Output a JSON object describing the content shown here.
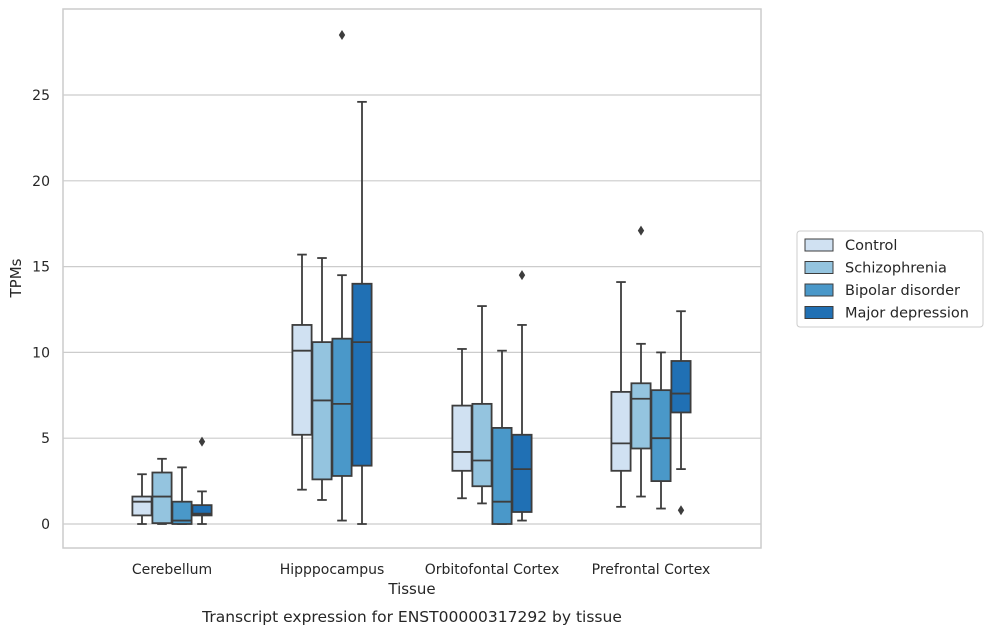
{
  "chart_data": {
    "type": "box",
    "caption": "Transcript expression for ENST00000317292 by tissue",
    "xlabel": "Tissue",
    "ylabel": "TPMs",
    "ylim": [
      -1.3,
      30
    ],
    "yticks": [
      0,
      5,
      10,
      15,
      20,
      25
    ],
    "grid": true,
    "legend_position": "right",
    "categories": [
      "Cerebellum",
      "Hipppocampus",
      "Orbitofontal Cortex",
      "Prefrontal Cortex"
    ],
    "series": [
      {
        "name": "Control",
        "color": "#d0e1f2",
        "boxes": [
          {
            "whislo": 0.0,
            "q1": 0.5,
            "med": 1.3,
            "q3": 1.6,
            "whishi": 2.9,
            "fliers": []
          },
          {
            "whislo": 2.0,
            "q1": 5.2,
            "med": 10.1,
            "q3": 11.6,
            "whishi": 15.7,
            "fliers": []
          },
          {
            "whislo": 1.5,
            "q1": 3.1,
            "med": 4.2,
            "q3": 6.9,
            "whishi": 10.2,
            "fliers": []
          },
          {
            "whislo": 1.0,
            "q1": 3.1,
            "med": 4.7,
            "q3": 7.7,
            "whishi": 14.1,
            "fliers": []
          }
        ]
      },
      {
        "name": "Schizophrenia",
        "color": "#94c4df",
        "boxes": [
          {
            "whislo": 0.0,
            "q1": 0.05,
            "med": 1.6,
            "q3": 3.0,
            "whishi": 3.8,
            "fliers": []
          },
          {
            "whislo": 1.4,
            "q1": 2.6,
            "med": 7.2,
            "q3": 10.6,
            "whishi": 15.5,
            "fliers": []
          },
          {
            "whislo": 1.2,
            "q1": 2.2,
            "med": 3.7,
            "q3": 7.0,
            "whishi": 12.7,
            "fliers": []
          },
          {
            "whislo": 1.6,
            "q1": 4.4,
            "med": 7.3,
            "q3": 8.2,
            "whishi": 10.5,
            "fliers": [
              17.1
            ]
          }
        ]
      },
      {
        "name": "Bipolar disorder",
        "color": "#4a98c9",
        "boxes": [
          {
            "whislo": 0.0,
            "q1": 0.0,
            "med": 0.2,
            "q3": 1.3,
            "whishi": 3.3,
            "fliers": []
          },
          {
            "whislo": 0.2,
            "q1": 2.8,
            "med": 7.0,
            "q3": 10.8,
            "whishi": 14.5,
            "fliers": [
              28.5
            ]
          },
          {
            "whislo": 0.0,
            "q1": 0.0,
            "med": 1.3,
            "q3": 5.6,
            "whishi": 10.1,
            "fliers": []
          },
          {
            "whislo": 0.9,
            "q1": 2.5,
            "med": 5.0,
            "q3": 7.8,
            "whishi": 10.0,
            "fliers": []
          }
        ]
      },
      {
        "name": "Major depression",
        "color": "#2070b4",
        "boxes": [
          {
            "whislo": 0.0,
            "q1": 0.5,
            "med": 0.6,
            "q3": 1.1,
            "whishi": 1.9,
            "fliers": [
              4.8
            ]
          },
          {
            "whislo": 0.0,
            "q1": 3.4,
            "med": 10.6,
            "q3": 14.0,
            "whishi": 24.6,
            "fliers": []
          },
          {
            "whislo": 0.2,
            "q1": 0.7,
            "med": 3.2,
            "q3": 5.2,
            "whishi": 11.6,
            "fliers": [
              14.5
            ]
          },
          {
            "whislo": 3.2,
            "q1": 6.5,
            "med": 7.6,
            "q3": 9.5,
            "whishi": 12.4,
            "fliers": [
              0.8
            ]
          }
        ]
      }
    ]
  }
}
